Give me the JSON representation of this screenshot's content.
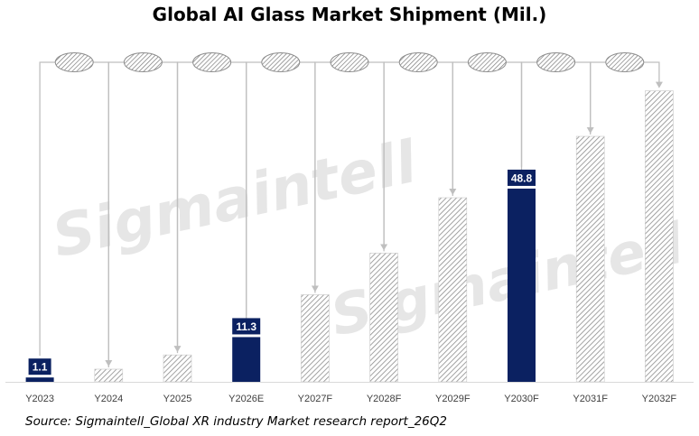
{
  "chart_data": {
    "type": "bar",
    "title": "Global AI Glass Market Shipment (Mil.)",
    "xlabel": "",
    "ylabel": "",
    "categories": [
      "Y2023",
      "Y2024",
      "Y2025",
      "Y2026E",
      "Y2027F",
      "Y2028F",
      "Y2029F",
      "Y2030F",
      "Y2031F",
      "Y2032F"
    ],
    "series": [
      {
        "values": [
          1.1,
          3.2,
          6.8,
          11.3,
          22.0,
          32.5,
          46.5,
          48.8,
          62.0,
          73.5
        ],
        "data_labels": [
          "1.1",
          "",
          "",
          "11.3",
          "",
          "",
          "",
          "48.8",
          "",
          ""
        ],
        "highlighted": [
          true,
          false,
          false,
          true,
          false,
          false,
          false,
          true,
          false,
          false
        ]
      }
    ],
    "ylim": [
      0,
      78
    ],
    "grid": false,
    "legend": "none",
    "growth_markers": "hatched ellipse connectors between consecutive years",
    "colors": {
      "highlight_bar": "#0b2161",
      "hatched_bar": "#8c8c8c",
      "connector": "#bfbfbf",
      "label_text": "#ffffff"
    }
  },
  "source_note": "Source: Sigmaintell_Global XR industry Market research report_26Q2",
  "watermark": "Sigmaintell"
}
